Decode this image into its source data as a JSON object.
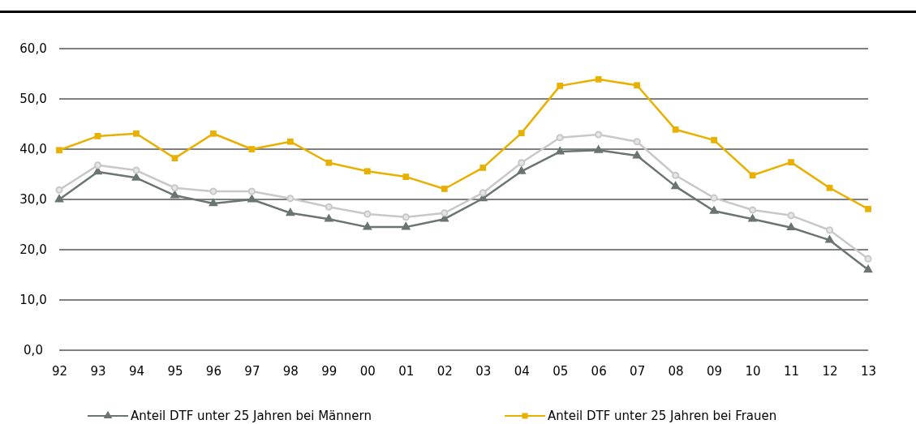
{
  "chart_data": {
    "type": "line",
    "categories": [
      "92",
      "93",
      "94",
      "95",
      "96",
      "97",
      "98",
      "99",
      "00",
      "01",
      "02",
      "03",
      "04",
      "05",
      "06",
      "07",
      "08",
      "09",
      "10",
      "11",
      "12",
      "13"
    ],
    "series": [
      {
        "name": "Anteil DTF unter 25 Jahren bei Männern",
        "color": "#6b7570",
        "marker": "triangle",
        "values": [
          30.0,
          35.5,
          34.3,
          30.8,
          29.2,
          30.0,
          27.3,
          26.1,
          24.5,
          24.5,
          26.1,
          30.2,
          35.6,
          39.5,
          39.8,
          38.7,
          32.6,
          27.7,
          26.1,
          24.4,
          21.9,
          16.0
        ]
      },
      {
        "color": "#c8c8c8",
        "marker": "circle",
        "values": [
          31.9,
          36.8,
          35.8,
          32.3,
          31.6,
          31.6,
          30.2,
          28.5,
          27.1,
          26.5,
          27.3,
          31.3,
          37.3,
          42.3,
          42.9,
          41.5,
          34.8,
          30.3,
          27.9,
          26.8,
          23.9,
          18.2
        ]
      },
      {
        "name": "Anteil DTF unter 25 Jahren bei Frauen",
        "color": "#e8b000",
        "marker": "square",
        "values": [
          39.8,
          42.6,
          43.1,
          38.2,
          43.1,
          40.0,
          41.5,
          37.3,
          35.6,
          34.5,
          32.1,
          36.3,
          43.2,
          52.6,
          53.9,
          52.7,
          43.9,
          41.8,
          34.8,
          37.4,
          32.3,
          28.1
        ]
      }
    ],
    "ylim": [
      0,
      60
    ],
    "yticks": [
      {
        "value": 0,
        "label": "0,0"
      },
      {
        "value": 10,
        "label": "10,0"
      },
      {
        "value": 20,
        "label": "20,0"
      },
      {
        "value": 30,
        "label": "30,0"
      },
      {
        "value": 40,
        "label": "40,0"
      },
      {
        "value": 50,
        "label": "50,0"
      },
      {
        "value": 60,
        "label": "60,0"
      }
    ],
    "grid": "y",
    "legend": "bottom",
    "line_style": "solid"
  }
}
